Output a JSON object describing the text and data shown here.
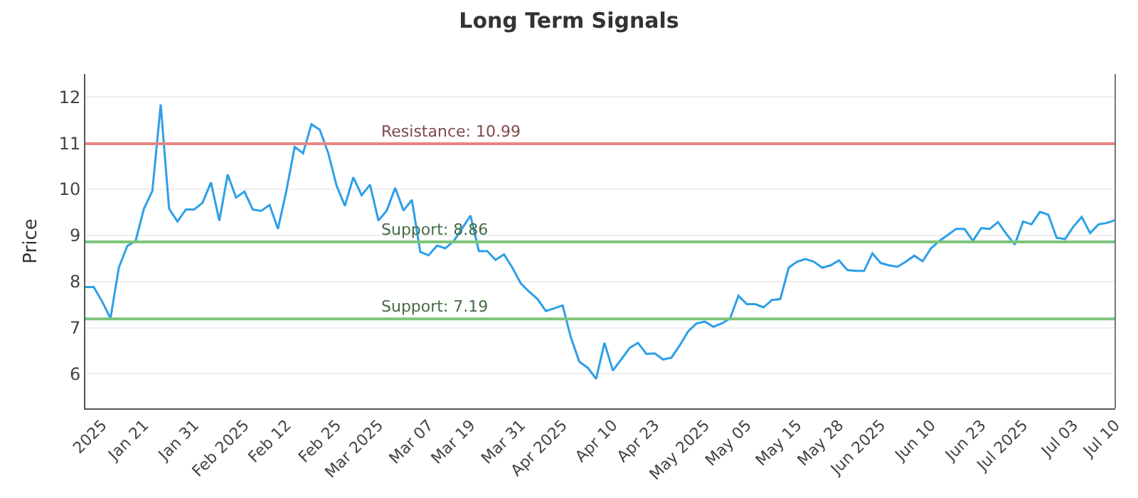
{
  "chart_data": {
    "type": "line",
    "title": "Long Term Signals",
    "ylabel": "Price",
    "categories": [
      null,
      null,
      "2025",
      null,
      null,
      null,
      null,
      "Jan 21",
      null,
      null,
      null,
      null,
      null,
      "Jan 31",
      null,
      null,
      null,
      null,
      null,
      "Feb 2025",
      null,
      null,
      null,
      null,
      "Feb 12",
      null,
      null,
      null,
      null,
      null,
      "Feb 25",
      null,
      null,
      null,
      null,
      "Mar 2025",
      null,
      null,
      null,
      null,
      null,
      "Mar 07",
      null,
      null,
      null,
      null,
      "Mar 19",
      null,
      null,
      null,
      null,
      null,
      "Mar 31",
      null,
      null,
      null,
      null,
      "Apr 2025",
      null,
      null,
      null,
      null,
      null,
      "Apr 10",
      null,
      null,
      null,
      null,
      "Apr 23",
      null,
      null,
      null,
      null,
      null,
      "May 2025",
      null,
      null,
      null,
      null,
      "May 05",
      null,
      null,
      null,
      null,
      null,
      "May 15",
      null,
      null,
      null,
      null,
      "May 28",
      null,
      null,
      null,
      null,
      "Jun 2025",
      null,
      null,
      null,
      null,
      null,
      "Jun 10",
      null,
      null,
      null,
      null,
      null,
      "Jun 23",
      null,
      null,
      null,
      null,
      "Jul 2025",
      null,
      null,
      null,
      null,
      null,
      "Jul 03",
      null,
      null,
      null,
      null,
      "Jul 10"
    ],
    "series": [
      {
        "color": "#2d9fe8",
        "values": [
          7.88,
          7.88,
          7.57,
          7.2,
          8.3,
          8.77,
          8.88,
          9.58,
          9.96,
          11.84,
          9.58,
          9.3,
          9.56,
          9.56,
          9.71,
          10.15,
          9.32,
          10.32,
          9.82,
          9.95,
          9.56,
          9.53,
          9.66,
          9.14,
          9.96,
          10.92,
          10.78,
          11.41,
          11.29,
          10.79,
          10.08,
          9.64,
          10.26,
          9.87,
          10.1,
          9.32,
          9.54,
          10.03,
          9.54,
          9.77,
          8.64,
          8.57,
          8.78,
          8.72,
          8.88,
          9.15,
          9.43,
          8.66,
          8.66,
          8.47,
          8.59,
          8.3,
          7.96,
          7.78,
          7.62,
          7.36,
          7.42,
          7.48,
          6.78,
          6.26,
          6.13,
          5.89,
          6.67,
          6.07,
          6.31,
          6.56,
          6.67,
          6.43,
          6.44,
          6.31,
          6.35,
          6.62,
          6.92,
          7.09,
          7.13,
          7.02,
          7.09,
          7.2,
          7.69,
          7.51,
          7.51,
          7.44,
          7.6,
          7.62,
          8.3,
          8.43,
          8.49,
          8.43,
          8.3,
          8.35,
          8.46,
          8.25,
          8.23,
          8.23,
          8.61,
          8.4,
          8.35,
          8.32,
          8.43,
          8.56,
          8.44,
          8.72,
          8.88,
          9.01,
          9.14,
          9.14,
          8.88,
          9.16,
          9.14,
          9.29,
          9.03,
          8.8,
          9.3,
          9.24,
          9.51,
          9.45,
          8.95,
          8.92,
          9.19,
          9.4,
          9.05,
          9.24,
          9.27,
          9.33
        ]
      }
    ],
    "ylim": [
      5.25,
      12.5
    ],
    "yticks": [
      6,
      7,
      8,
      9,
      10,
      11,
      12
    ],
    "grid": "y",
    "legend": false,
    "marker": "none",
    "line_style": "solid",
    "ref_lines": [
      {
        "axis": "y",
        "value": 10.99,
        "label": "Resistance: 10.99",
        "color": "#e88484"
      },
      {
        "axis": "y",
        "value": 8.86,
        "label": "Support: 8.86",
        "color": "#7dc47a"
      },
      {
        "axis": "y",
        "value": 7.19,
        "label": "Support: 7.19",
        "color": "#7dc47a"
      }
    ]
  }
}
